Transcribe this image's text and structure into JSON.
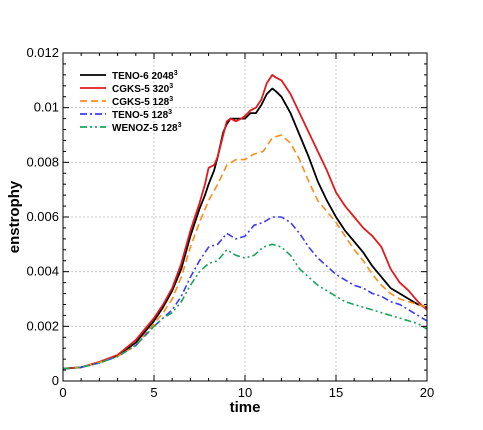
{
  "chart_data": {
    "type": "line",
    "title": "",
    "xlabel": "time",
    "ylabel": "enstrophy",
    "xlim": [
      0,
      20
    ],
    "ylim": [
      0,
      0.012
    ],
    "x_ticks": [
      "0",
      "5",
      "10",
      "15",
      "20"
    ],
    "y_ticks": [
      "0",
      "0.002",
      "0.004",
      "0.006",
      "0.008",
      "0.01",
      "0.012"
    ],
    "grid": true,
    "legend_placement": "top-left",
    "series": [
      {
        "name": "TENO-6 2048",
        "name_sup": "3",
        "color": "#000000",
        "dash": "solid",
        "x": [
          0,
          1,
          2,
          3,
          4,
          5,
          5.5,
          6,
          6.5,
          7,
          7.5,
          7.8,
          8,
          8.3,
          8.5,
          8.8,
          9,
          9.2,
          9.5,
          9.8,
          10,
          10.3,
          10.6,
          10.9,
          11.2,
          11.5,
          11.7,
          12,
          12.5,
          13,
          13.5,
          14,
          14.5,
          15,
          15.5,
          16,
          16.5,
          17,
          17.5,
          18,
          18.5,
          19,
          19.5,
          20
        ],
        "y": [
          0.00045,
          0.0005,
          0.00068,
          0.00093,
          0.0014,
          0.0022,
          0.0027,
          0.0033,
          0.0041,
          0.0053,
          0.0063,
          0.0068,
          0.0072,
          0.0077,
          0.0082,
          0.0091,
          0.0094,
          0.0096,
          0.0096,
          0.0096,
          0.0096,
          0.0098,
          0.0098,
          0.0101,
          0.0105,
          0.0107,
          0.0106,
          0.0104,
          0.0098,
          0.009,
          0.0082,
          0.0073,
          0.0066,
          0.006,
          0.0055,
          0.0051,
          0.0047,
          0.0042,
          0.0038,
          0.0034,
          0.0032,
          0.003,
          0.0028,
          0.0027
        ]
      },
      {
        "name": "CGKS-5 320",
        "name_sup": "3",
        "color": "#e31a1c",
        "dash": "solid",
        "x": [
          0,
          1,
          2,
          3,
          4,
          5,
          5.5,
          6,
          6.5,
          7,
          7.5,
          7.8,
          8,
          8.3,
          8.5,
          8.8,
          9,
          9.2,
          9.5,
          9.8,
          10,
          10.3,
          10.6,
          10.9,
          11.2,
          11.5,
          11.7,
          12,
          12.5,
          13,
          13.5,
          14,
          14.5,
          15,
          15.5,
          16,
          16.5,
          17,
          17.5,
          18,
          18.5,
          19,
          19.5,
          20
        ],
        "y": [
          0.00045,
          0.0005,
          0.0007,
          0.00095,
          0.0015,
          0.0023,
          0.0028,
          0.0034,
          0.0043,
          0.0055,
          0.0065,
          0.0072,
          0.0078,
          0.0079,
          0.0082,
          0.009,
          0.0095,
          0.0096,
          0.0095,
          0.0096,
          0.0097,
          0.0099,
          0.01,
          0.0103,
          0.0109,
          0.0112,
          0.0111,
          0.011,
          0.0105,
          0.0098,
          0.0091,
          0.0084,
          0.0077,
          0.0069,
          0.0064,
          0.006,
          0.0056,
          0.0053,
          0.0049,
          0.0041,
          0.0036,
          0.0033,
          0.0029,
          0.0026
        ]
      },
      {
        "name": "CGKS-5 128",
        "name_sup": "3",
        "color": "#ff8c1a",
        "dash": "dashed",
        "x": [
          0,
          1,
          2,
          3,
          4,
          5,
          5.5,
          6,
          6.5,
          7,
          7.5,
          8,
          8.5,
          9,
          9.5,
          10,
          10.5,
          11,
          11.5,
          12,
          12.5,
          13,
          13.5,
          14,
          14.5,
          15,
          15.5,
          16,
          16.5,
          17,
          17.5,
          18,
          18.5,
          19,
          19.5,
          20
        ],
        "y": [
          0.00045,
          0.0005,
          0.00068,
          0.0009,
          0.0013,
          0.0021,
          0.0025,
          0.003,
          0.0038,
          0.0049,
          0.0058,
          0.0066,
          0.0072,
          0.0079,
          0.0081,
          0.0081,
          0.0083,
          0.0084,
          0.0089,
          0.009,
          0.0087,
          0.0081,
          0.0073,
          0.0066,
          0.0062,
          0.0058,
          0.0053,
          0.0048,
          0.0044,
          0.0039,
          0.0035,
          0.0032,
          0.003,
          0.0029,
          0.0028,
          0.0027
        ]
      },
      {
        "name": "TENO-5 128",
        "name_sup": "3",
        "color": "#3b3bf5",
        "dash": "dashdot",
        "x": [
          0,
          1,
          2,
          3,
          4,
          5,
          5.5,
          6,
          6.5,
          7,
          7.5,
          8,
          8.5,
          9,
          9.5,
          10,
          10.5,
          11,
          11.5,
          12,
          12.5,
          13,
          13.5,
          14,
          14.5,
          15,
          15.5,
          16,
          16.5,
          17,
          17.5,
          18,
          18.5,
          19,
          19.5,
          20
        ],
        "y": [
          0.00045,
          0.0005,
          0.00066,
          0.0009,
          0.0013,
          0.002,
          0.0023,
          0.0026,
          0.0031,
          0.0038,
          0.0044,
          0.0049,
          0.005,
          0.0054,
          0.0052,
          0.0053,
          0.0057,
          0.0058,
          0.006,
          0.006,
          0.0058,
          0.0054,
          0.0049,
          0.0045,
          0.0042,
          0.0039,
          0.0037,
          0.0035,
          0.0034,
          0.0032,
          0.0031,
          0.0029,
          0.0028,
          0.0026,
          0.0024,
          0.0022
        ]
      },
      {
        "name": "WENOZ-5 128",
        "name_sup": "3",
        "color": "#1aa35a",
        "dash": "dashdotdot",
        "x": [
          0,
          1,
          2,
          3,
          4,
          5,
          5.5,
          6,
          6.5,
          7,
          7.5,
          8,
          8.5,
          9,
          9.5,
          10,
          10.5,
          11,
          11.5,
          12,
          12.5,
          13,
          13.5,
          14,
          14.5,
          15,
          15.5,
          16,
          16.5,
          17,
          17.5,
          18,
          18.5,
          19,
          19.5,
          20
        ],
        "y": [
          0.00045,
          0.0005,
          0.00066,
          0.0009,
          0.0013,
          0.002,
          0.0023,
          0.0025,
          0.0029,
          0.0035,
          0.004,
          0.0043,
          0.0044,
          0.0048,
          0.0046,
          0.0045,
          0.0046,
          0.0049,
          0.005,
          0.0049,
          0.0046,
          0.0041,
          0.0038,
          0.0035,
          0.0033,
          0.0031,
          0.0029,
          0.0028,
          0.0027,
          0.0026,
          0.0025,
          0.0024,
          0.0023,
          0.0022,
          0.0021,
          0.0019
        ]
      }
    ]
  }
}
